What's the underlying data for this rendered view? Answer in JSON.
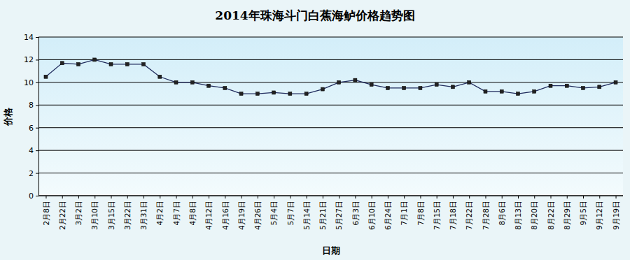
{
  "chart_data": {
    "type": "line",
    "title": "2014年珠海斗门白蕉海鲈价格趋势图",
    "x_label": "日期",
    "y_label": "价格",
    "categories": [
      "2月8日",
      "2月22日",
      "3月2日",
      "3月10日",
      "3月15日",
      "3月22日",
      "3月31日",
      "4月2日",
      "4月7日",
      "4月8日",
      "4月12日",
      "4月16日",
      "4月19日",
      "4月26日",
      "5月4日",
      "5月7日",
      "5月14日",
      "5月21日",
      "5月27日",
      "6月3日",
      "6月10日",
      "6月24日",
      "7月1日",
      "7月8日",
      "7月15日",
      "7月18日",
      "7月22日",
      "7月28日",
      "8月6日",
      "8月13日",
      "8月20日",
      "8月22日",
      "8月29日",
      "9月5日",
      "9月12日",
      "9月19日"
    ],
    "values": [
      10.5,
      11.7,
      11.6,
      12,
      11.6,
      11.6,
      11.6,
      10.5,
      10,
      10,
      9.7,
      9.5,
      9,
      9,
      9.1,
      9,
      9,
      9.4,
      10,
      10.2,
      9.8,
      9.5,
      9.5,
      9.5,
      9.8,
      9.6,
      10,
      9.2,
      9.2,
      9,
      9.2,
      9.7,
      9.7,
      9.5,
      9.6,
      10
    ],
    "color": "#1f2a5c",
    "marker": "square",
    "ylim": [
      0,
      14
    ],
    "yticks": [
      0,
      2,
      4,
      6,
      8,
      10,
      12,
      14
    ],
    "grid": true
  }
}
